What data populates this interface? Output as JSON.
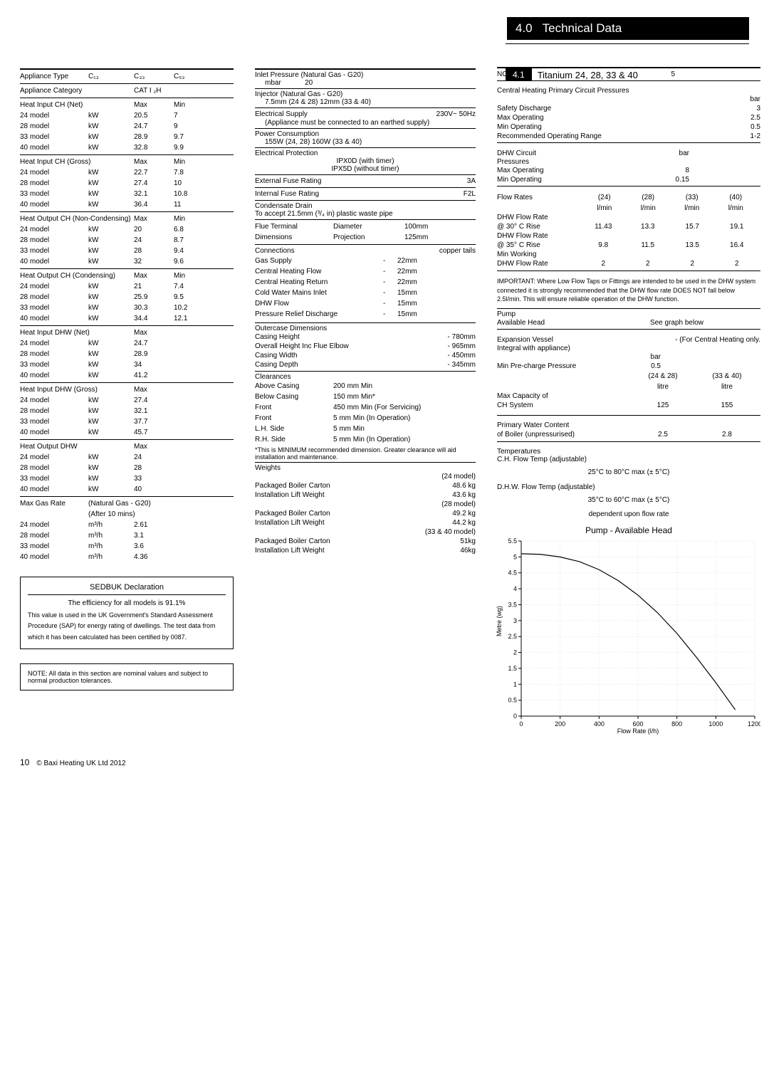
{
  "header": {
    "num": "4.0",
    "title": "Technical Data"
  },
  "subhead": {
    "tag": "4.1",
    "title": "Titanium 24, 28, 33 & 40"
  },
  "col1": {
    "type_row": {
      "label": "Appliance Type",
      "c1": "C₁₃",
      "c2": "C₃₃",
      "c3": "C₅₃"
    },
    "category": {
      "label": "Appliance Category",
      "value": "CAT I ₂H"
    },
    "groups": [
      {
        "title": "Heat Input CH (Net)",
        "h2": "Max",
        "h3": "Min",
        "rows": [
          [
            "24 model",
            "kW",
            "20.5",
            "7"
          ],
          [
            "28 model",
            "kW",
            "24.7",
            "9"
          ],
          [
            "33 model",
            "kW",
            "28.9",
            "9.7"
          ],
          [
            "40 model",
            "kW",
            "32.8",
            "9.9"
          ]
        ]
      },
      {
        "title": "Heat Input CH (Gross)",
        "h2": "Max",
        "h3": "Min",
        "rows": [
          [
            "24 model",
            "kW",
            "22.7",
            "7.8"
          ],
          [
            "28 model",
            "kW",
            "27.4",
            "10"
          ],
          [
            "33 model",
            "kW",
            "32.1",
            "10.8"
          ],
          [
            "40 model",
            "kW",
            "36.4",
            "11"
          ]
        ]
      },
      {
        "title": "Heat Output CH (Non-Condensing)",
        "h2": "Max",
        "h3": "Min",
        "rows": [
          [
            "24 model",
            "kW",
            "20",
            "6.8"
          ],
          [
            "28 model",
            "kW",
            "24",
            "8.7"
          ],
          [
            "33 model",
            "kW",
            "28",
            "9.4"
          ],
          [
            "40 model",
            "kW",
            "32",
            "9.6"
          ]
        ]
      },
      {
        "title": "Heat Output CH (Condensing)",
        "h2": "Max",
        "h3": "Min",
        "rows": [
          [
            "24 model",
            "kW",
            "21",
            "7.4"
          ],
          [
            "28 model",
            "kW",
            "25.9",
            "9.5"
          ],
          [
            "33 model",
            "kW",
            "30.3",
            "10.2"
          ],
          [
            "40 model",
            "kW",
            "34.4",
            "12.1"
          ]
        ]
      },
      {
        "title": "Heat Input DHW (Net)",
        "h2": "Max",
        "h3": "",
        "rows": [
          [
            "24 model",
            "kW",
            "24.7",
            ""
          ],
          [
            "28 model",
            "kW",
            "28.9",
            ""
          ],
          [
            "33 model",
            "kW",
            "34",
            ""
          ],
          [
            "40 model",
            "kW",
            "41.2",
            ""
          ]
        ]
      },
      {
        "title": "Heat Input DHW (Gross)",
        "h2": "Max",
        "h3": "",
        "rows": [
          [
            "24 model",
            "kW",
            "27.4",
            ""
          ],
          [
            "28 model",
            "kW",
            "32.1",
            ""
          ],
          [
            "33 model",
            "kW",
            "37.7",
            ""
          ],
          [
            "40 model",
            "kW",
            "45.7",
            ""
          ]
        ]
      },
      {
        "title": "Heat Output DHW",
        "h2": "Max",
        "h3": "",
        "rows": [
          [
            "24 model",
            "kW",
            "24",
            ""
          ],
          [
            "28 model",
            "kW",
            "28",
            ""
          ],
          [
            "33 model",
            "kW",
            "33",
            ""
          ],
          [
            "40 model",
            "kW",
            "40",
            ""
          ]
        ]
      }
    ],
    "gasrate": {
      "title": "Max Gas Rate",
      "unit": "(Natural Gas - G20)",
      "note": "(After 10 mins)",
      "rows": [
        [
          "24 model",
          "m³/h",
          "2.61"
        ],
        [
          "28 model",
          "m³/h",
          "3.1"
        ],
        [
          "33 model",
          "m³/h",
          "3.6"
        ],
        [
          "40 model",
          "m³/h",
          "4.36"
        ]
      ]
    },
    "sedbuk": {
      "title": "SEDBUK Declaration",
      "intro": "The efficiency for all models is 91.1%",
      "body": "This value is used in the UK Government's Standard Assessment Procedure (SAP) for energy rating of dwellings. The test data from which it has been calculated has been certified by 0087."
    },
    "note": "NOTE: All data in this section are nominal values and subject to normal production tolerances."
  },
  "col2": {
    "inlet": {
      "label": "Inlet Pressure (Natural Gas - G20)",
      "sub": "mbar            20"
    },
    "injector": {
      "label": "Injector (Natural Gas - G20)",
      "sub": "7.5mm (24 & 28) 12mm (33 & 40)"
    },
    "elec_supply": {
      "label": "Electrical Supply",
      "val": "230V~ 50Hz",
      "sub": "(Appliance must be connected to an earthed supply)"
    },
    "power": {
      "label": "Power Consumption",
      "sub": "155W (24, 28)  160W (33 & 40)"
    },
    "protection": {
      "label": "Electrical Protection",
      "l1": "IPX0D (with timer)",
      "l2": "IPX5D (without timer)"
    },
    "ext_fuse": {
      "label": "External Fuse Rating",
      "val": "3A"
    },
    "int_fuse": {
      "label": "Internal Fuse Rating",
      "val": "F2L"
    },
    "condensate": {
      "label": "Condensate Drain",
      "sub": "To accept 21.5mm (³/₄ in) plastic waste pipe"
    },
    "flue": {
      "label": "Flue Terminal",
      "c1": "Diameter",
      "v1": "100mm",
      "label2": "Dimensions",
      "c2": "Projection",
      "v2": "125mm"
    },
    "connections": {
      "label": "Connections",
      "right": "copper tails",
      "rows": [
        [
          "Gas Supply",
          "-",
          "22mm"
        ],
        [
          "Central Heating Flow",
          "-",
          "22mm"
        ],
        [
          "Central Heating Return",
          "-",
          "22mm"
        ],
        [
          "Cold Water Mains Inlet",
          "-",
          "15mm"
        ],
        [
          "DHW Flow",
          "-",
          "15mm"
        ],
        [
          "Pressure Relief Discharge",
          "-",
          "15mm"
        ]
      ]
    },
    "outercase": {
      "label": "Outercase Dimensions",
      "rows": [
        [
          "Casing Height",
          "- 780mm"
        ],
        [
          "Overall Height Inc Flue Elbow",
          "- 965mm"
        ],
        [
          "Casing Width",
          "- 450mm"
        ],
        [
          "Casing Depth",
          "- 345mm"
        ]
      ]
    },
    "clearances": {
      "label": "Clearances",
      "rows": [
        [
          "Above Casing",
          "200 mm Min"
        ],
        [
          "Below Casing",
          "150 mm Min*"
        ],
        [
          "Front",
          "450 mm Min (For Servicing)"
        ],
        [
          "Front",
          "5 mm Min (In Operation)"
        ],
        [
          "L.H. Side",
          "5 mm Min"
        ],
        [
          "R.H. Side",
          "5 mm Min (In Operation)"
        ]
      ],
      "foot": "*This is MINIMUM recommended dimension. Greater clearance will aid installation and maintenance."
    },
    "weights": {
      "label": "Weights",
      "groups": [
        {
          "head": "(24 model)",
          "rows": [
            [
              "Packaged Boiler Carton",
              "48.6 kg"
            ],
            [
              "Installation Lift Weight",
              "43.6 kg"
            ]
          ]
        },
        {
          "head": "(28 model)",
          "rows": [
            [
              "Packaged Boiler Carton",
              "49.2 kg"
            ],
            [
              "Installation Lift Weight",
              "44.2 kg"
            ]
          ]
        },
        {
          "head": "(33 & 40 model)",
          "rows": [
            [
              "Packaged Boiler Carton",
              "51kg"
            ],
            [
              "Installation Lift Weight",
              "46kg"
            ]
          ]
        }
      ]
    }
  },
  "col3": {
    "nox": {
      "label": "NOₓ Class",
      "val": "5"
    },
    "chp": {
      "label": "Central Heating Primary Circuit Pressures",
      "unit": "bar",
      "rows": [
        [
          "Safety Discharge",
          "3"
        ],
        [
          "Max Operating",
          "2.5"
        ],
        [
          "Min Operating",
          "0.5"
        ],
        [
          "Recommended Operating Range",
          "1-2"
        ]
      ]
    },
    "dhwc": {
      "label": "DHW Circuit",
      "unit": "bar",
      "label2": "Pressures",
      "rows": [
        [
          "Max Operating",
          "8"
        ],
        [
          "Min Operating",
          "0.15"
        ]
      ]
    },
    "flowrates": {
      "label": "Flow Rates",
      "cols": [
        "(24)",
        "(28)",
        "(33)",
        "(40)"
      ],
      "units": [
        "l/min",
        "l/min",
        "l/min",
        "l/min"
      ],
      "sections": [
        {
          "name": "DHW Flow Rate",
          "sub": "@ 30° C Rise",
          "vals": [
            "11.43",
            "13.3",
            "15.7",
            "19.1"
          ]
        },
        {
          "name": "DHW Flow Rate",
          "sub": "@ 35° C Rise",
          "vals": [
            "9.8",
            "11.5",
            "13.5",
            "16.4"
          ]
        },
        {
          "name": "Min Working",
          "sub": "DHW Flow Rate",
          "vals": [
            "2",
            "2",
            "2",
            "2"
          ]
        }
      ]
    },
    "important": "IMPORTANT: Where Low Flow Taps or Fittings are intended to be used in the DHW system connected it is strongly recommended that the DHW flow rate DOES NOT fall below 2.5l/min. This will ensure reliable operation of the DHW function.",
    "pump": {
      "label": "Pump",
      "l2": "Available  Head",
      "r": "See graph below"
    },
    "expansion": {
      "label": "Expansion Vessel",
      "r": "- (For Central Heating only.",
      "sub": "Integral with appliance)",
      "unit": "bar",
      "rows": [
        [
          "Min Pre-charge Pressure",
          "0.5"
        ]
      ],
      "cols": [
        "(24 & 28)",
        "(33 & 40)"
      ],
      "colunit": "litre",
      "rows2": [
        [
          "Max Capacity of",
          ""
        ],
        [
          "CH System",
          "125",
          "155"
        ]
      ]
    },
    "pwater": {
      "label": "Primary Water Content",
      "sub": "of Boiler (unpressurised)",
      "v1": "2.5",
      "v2": "2.8"
    },
    "temps": {
      "label": "Temperatures",
      "l1": "C.H. Flow Temp (adjustable)",
      "l1v": "25°C to 80°C max (± 5°C)",
      "l2": "D.H.W. Flow Temp (adjustable)",
      "l2v": "35°C to 60°C max (± 5°C)",
      "l3": "dependent upon flow rate"
    },
    "chart": {
      "title": "Pump - Available Head",
      "xlabel": "Flow Rate  (l/h)",
      "ylabel": "Metre (wg)",
      "xlim": [
        0,
        1200
      ],
      "ylim": [
        0,
        5.5
      ],
      "xticks": [
        0,
        200,
        400,
        600,
        800,
        1000,
        1200
      ],
      "yticks": [
        0,
        0.5,
        1,
        1.5,
        2,
        2.5,
        3,
        3.5,
        4,
        4.5,
        5,
        5.5
      ],
      "grid_color": "#cccccc",
      "line_color": "#000000",
      "background": "#ffffff",
      "line_width": 1.2,
      "type": "line",
      "points": [
        [
          0,
          5.1
        ],
        [
          100,
          5.08
        ],
        [
          200,
          5.0
        ],
        [
          300,
          4.85
        ],
        [
          400,
          4.6
        ],
        [
          500,
          4.25
        ],
        [
          600,
          3.8
        ],
        [
          700,
          3.25
        ],
        [
          800,
          2.6
        ],
        [
          900,
          1.85
        ],
        [
          1000,
          1.05
        ],
        [
          1100,
          0.2
        ]
      ]
    }
  },
  "footer": {
    "page": "10",
    "copy": "© Baxi Heating UK Ltd 2012"
  }
}
